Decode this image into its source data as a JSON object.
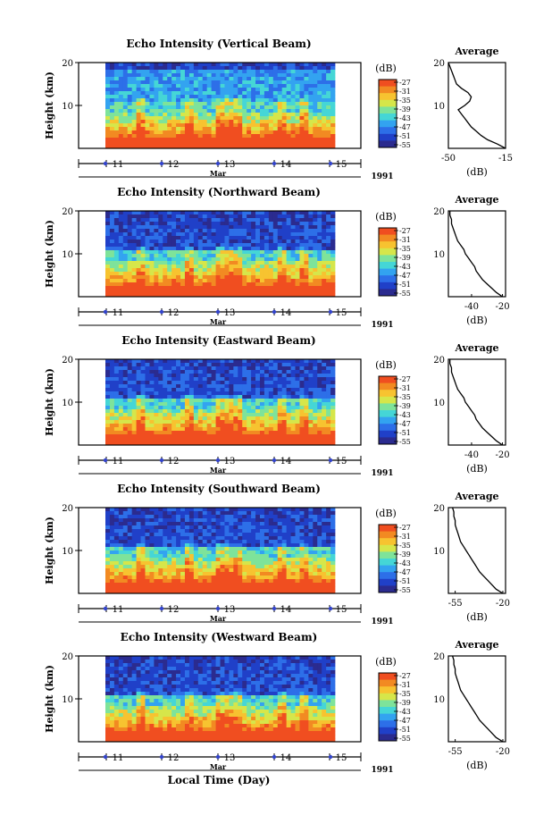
{
  "figure": {
    "shared_xlabel": "Local Time (Day)",
    "month_label": "Mar",
    "year_label": "1991",
    "colorbar_unit": "(dB)",
    "avg_title": "Average",
    "avg_xlabel": "(dB)",
    "ylabel": "Height (km)",
    "y_ticks": [
      "20",
      "10"
    ],
    "day_ticks": [
      "11",
      "12",
      "13",
      "14",
      "15"
    ],
    "colorbar_ticks": [
      "-27",
      "-31",
      "-35",
      "-39",
      "-43",
      "-47",
      "-51",
      "-55"
    ],
    "colormap": [
      "#2b2b8f",
      "#2040c8",
      "#2d6fe8",
      "#33a3f0",
      "#45d6d6",
      "#7ee39a",
      "#d6e64a",
      "#f7c330",
      "#f28a22",
      "#f04e20"
    ],
    "marker_color": "#3344cc"
  },
  "chart_data": [
    {
      "type": "heatmap",
      "title": "Echo Intensity (Vertical Beam)",
      "x_range": [
        10.5,
        15.5
      ],
      "ylim": [
        0,
        20
      ],
      "color_range_db": [
        -55,
        -27
      ],
      "average_profile": {
        "title": "Average",
        "xlabel": "(dB)",
        "x_ticks": [
          "-50",
          "-15"
        ],
        "xlim": [
          -50,
          -15
        ],
        "heights_km": [
          0,
          1,
          2,
          3,
          4,
          5,
          6,
          7,
          8,
          9,
          10,
          11,
          12,
          13,
          14,
          15,
          16,
          17,
          18,
          19,
          20
        ],
        "values_db": [
          -15,
          -20,
          -26,
          -30,
          -33,
          -36,
          -38,
          -40,
          -42,
          -44,
          -40,
          -37,
          -36,
          -38,
          -42,
          -45,
          -46,
          -47,
          -48,
          -49,
          -50
        ]
      }
    },
    {
      "type": "heatmap",
      "title": "Echo Intensity (Northward Beam)",
      "x_range": [
        10.5,
        15.5
      ],
      "ylim": [
        0,
        20
      ],
      "color_range_db": [
        -55,
        -27
      ],
      "average_profile": {
        "title": "Average",
        "xlabel": "(dB)",
        "x_ticks": [
          "-40",
          "-20"
        ],
        "xlim": [
          -55,
          -18
        ],
        "heights_km": [
          0,
          1,
          2,
          3,
          4,
          5,
          6,
          7,
          8,
          9,
          10,
          11,
          12,
          13,
          14,
          15,
          16,
          17,
          18,
          19,
          20
        ],
        "values_db": [
          -20,
          -24,
          -27,
          -30,
          -33,
          -35,
          -37,
          -38,
          -40,
          -42,
          -44,
          -45,
          -47,
          -49,
          -50,
          -51,
          -52,
          -53,
          -53,
          -54,
          -54
        ]
      }
    },
    {
      "type": "heatmap",
      "title": "Echo Intensity (Eastward Beam)",
      "x_range": [
        10.5,
        15.5
      ],
      "ylim": [
        0,
        20
      ],
      "color_range_db": [
        -55,
        -27
      ],
      "average_profile": {
        "title": "Average",
        "xlabel": "(dB)",
        "x_ticks": [
          "-40",
          "-20"
        ],
        "xlim": [
          -55,
          -18
        ],
        "heights_km": [
          0,
          1,
          2,
          3,
          4,
          5,
          6,
          7,
          8,
          9,
          10,
          11,
          12,
          13,
          14,
          15,
          16,
          17,
          18,
          19,
          20
        ],
        "values_db": [
          -20,
          -24,
          -27,
          -30,
          -33,
          -35,
          -37,
          -38,
          -40,
          -42,
          -44,
          -45,
          -47,
          -49,
          -50,
          -51,
          -52,
          -53,
          -53,
          -54,
          -54
        ]
      }
    },
    {
      "type": "heatmap",
      "title": "Echo Intensity (Southward Beam)",
      "x_range": [
        10.5,
        15.5
      ],
      "ylim": [
        0,
        20
      ],
      "color_range_db": [
        -55,
        -27
      ],
      "average_profile": {
        "title": "Average",
        "xlabel": "(dB)",
        "x_ticks": [
          "-55",
          "-20"
        ],
        "xlim": [
          -60,
          -18
        ],
        "heights_km": [
          0,
          1,
          2,
          3,
          4,
          5,
          6,
          7,
          8,
          9,
          10,
          11,
          12,
          13,
          14,
          15,
          16,
          17,
          18,
          19,
          20
        ],
        "values_db": [
          -20,
          -25,
          -28,
          -31,
          -34,
          -37,
          -39,
          -41,
          -43,
          -45,
          -47,
          -49,
          -51,
          -52,
          -53,
          -54,
          -55,
          -55,
          -56,
          -56,
          -57
        ]
      }
    },
    {
      "type": "heatmap",
      "title": "Echo Intensity (Westward Beam)",
      "x_range": [
        10.5,
        15.5
      ],
      "ylim": [
        0,
        20
      ],
      "color_range_db": [
        -55,
        -27
      ],
      "average_profile": {
        "title": "Average",
        "xlabel": "(dB)",
        "x_ticks": [
          "-55",
          "-20"
        ],
        "xlim": [
          -60,
          -18
        ],
        "heights_km": [
          0,
          1,
          2,
          3,
          4,
          5,
          6,
          7,
          8,
          9,
          10,
          11,
          12,
          13,
          14,
          15,
          16,
          17,
          18,
          19,
          20
        ],
        "values_db": [
          -20,
          -25,
          -28,
          -31,
          -34,
          -37,
          -39,
          -41,
          -43,
          -45,
          -47,
          -49,
          -51,
          -52,
          -53,
          -54,
          -55,
          -55,
          -56,
          -56,
          -57
        ]
      }
    }
  ]
}
